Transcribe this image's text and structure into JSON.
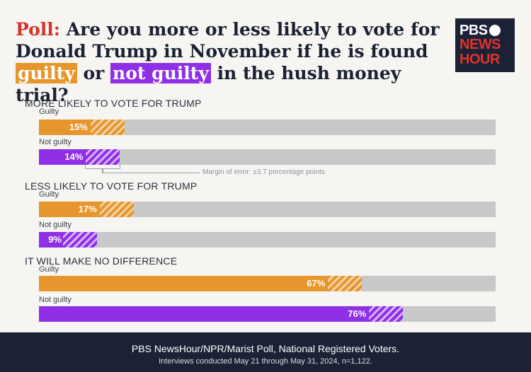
{
  "title": {
    "poll": "Poll:",
    "part1": "Are you more or less likely to vote for Donald Trump in November if he is found",
    "guilty": "guilty",
    "or": "or",
    "not_guilty": "not guilty",
    "part2": "in the hush money trial?"
  },
  "logo": {
    "line1": "PBS",
    "line2": "NEWS",
    "line3": "HOUR"
  },
  "colors": {
    "guilty": "#e6962d",
    "not_guilty": "#8f2fe6",
    "track": "#c8c8c8",
    "footer": "#1b2235",
    "poll": "#d8332b"
  },
  "moe_note": "Margin of error: ±3.7 percentage points",
  "footer": {
    "line1": "PBS NewsHour/NPR/Marist Poll, National Registered Voters.",
    "line2": "Interviews conducted May 21 through May 31, 2024, n=1,122."
  },
  "chart_data": {
    "type": "bar",
    "orientation": "horizontal",
    "xlim": [
      0,
      100
    ],
    "margin_of_error": 3.7,
    "value_format": "percent",
    "groups": [
      {
        "title": "MORE LIKELY TO VOTE FOR TRUMP",
        "bars": [
          {
            "label": "Guilty",
            "series": "guilty",
            "value": 15,
            "display": "15%"
          },
          {
            "label": "Not guilty",
            "series": "not_guilty",
            "value": 14,
            "display": "14%"
          }
        ]
      },
      {
        "title": "LESS LIKELY TO VOTE FOR TRUMP",
        "bars": [
          {
            "label": "Guilty",
            "series": "guilty",
            "value": 17,
            "display": "17%"
          },
          {
            "label": "Not guilty",
            "series": "not_guilty",
            "value": 9,
            "display": "9%"
          }
        ]
      },
      {
        "title": "IT WILL MAKE NO DIFFERENCE",
        "bars": [
          {
            "label": "Guilty",
            "series": "guilty",
            "value": 67,
            "display": "67%"
          },
          {
            "label": "Not guilty",
            "series": "not_guilty",
            "value": 76,
            "display": "76%"
          }
        ]
      }
    ]
  }
}
